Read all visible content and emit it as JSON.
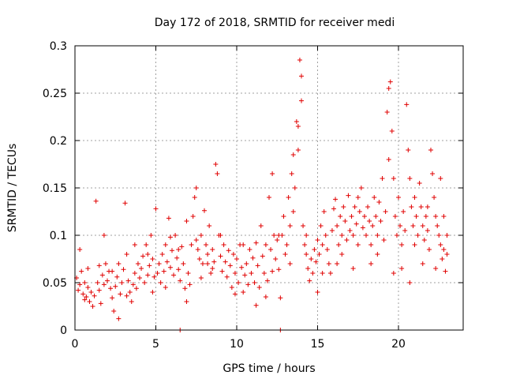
{
  "chart_data": {
    "type": "scatter",
    "title": "Day 172 of 2018, SRMTID for receiver medi",
    "xlabel": "GPS time / hours",
    "ylabel": "SRMTID / TECUs",
    "xlim": [
      0,
      24
    ],
    "ylim": [
      0,
      0.3
    ],
    "xticks": [
      0,
      5,
      10,
      15,
      20
    ],
    "xtick_labels": [
      "0",
      "5",
      "10",
      "15",
      "20"
    ],
    "yticks": [
      0,
      0.05,
      0.1,
      0.15,
      0.2,
      0.25,
      0.3
    ],
    "ytick_labels": [
      "0",
      "0.05",
      "0.1",
      "0.15",
      "0.2",
      "0.25",
      "0.3"
    ],
    "grid": true,
    "marker": "+",
    "marker_color": "#e00000",
    "series": [
      {
        "name": "SRMTID",
        "points": [
          [
            0.1,
            0.055
          ],
          [
            0.2,
            0.042
          ],
          [
            0.3,
            0.048
          ],
          [
            0.4,
            0.062
          ],
          [
            0.5,
            0.038
          ],
          [
            0.6,
            0.05
          ],
          [
            0.7,
            0.035
          ],
          [
            0.8,
            0.045
          ],
          [
            0.9,
            0.03
          ],
          [
            1.0,
            0.04
          ],
          [
            1.1,
            0.025
          ],
          [
            1.2,
            0.036
          ],
          [
            1.3,
            0.136
          ],
          [
            1.4,
            0.05
          ],
          [
            1.5,
            0.042
          ],
          [
            1.6,
            0.028
          ],
          [
            1.7,
            0.058
          ],
          [
            1.8,
            0.048
          ],
          [
            1.9,
            0.07
          ],
          [
            2.0,
            0.052
          ],
          [
            2.1,
            0.062
          ],
          [
            2.2,
            0.044
          ],
          [
            2.3,
            0.034
          ],
          [
            2.4,
            0.02
          ],
          [
            2.5,
            0.046
          ],
          [
            2.6,
            0.056
          ],
          [
            2.7,
            0.07
          ],
          [
            2.8,
            0.038
          ],
          [
            2.9,
            0.05
          ],
          [
            3.0,
            0.064
          ],
          [
            3.1,
            0.134
          ],
          [
            3.2,
            0.08
          ],
          [
            3.3,
            0.052
          ],
          [
            3.4,
            0.04
          ],
          [
            3.5,
            0.03
          ],
          [
            3.6,
            0.048
          ],
          [
            3.7,
            0.06
          ],
          [
            3.8,
            0.044
          ],
          [
            3.9,
            0.07
          ],
          [
            4.0,
            0.055
          ],
          [
            4.1,
            0.065
          ],
          [
            4.2,
            0.078
          ],
          [
            4.3,
            0.05
          ],
          [
            4.4,
            0.09
          ],
          [
            4.5,
            0.058
          ],
          [
            4.6,
            0.068
          ],
          [
            4.7,
            0.1
          ],
          [
            4.8,
            0.075
          ],
          [
            4.9,
            0.056
          ],
          [
            5.0,
            0.128
          ],
          [
            5.1,
            0.06
          ],
          [
            5.2,
            0.07
          ],
          [
            5.3,
            0.05
          ],
          [
            5.4,
            0.08
          ],
          [
            5.5,
            0.062
          ],
          [
            5.6,
            0.09
          ],
          [
            5.7,
            0.072
          ],
          [
            5.8,
            0.118
          ],
          [
            5.9,
            0.066
          ],
          [
            6.0,
            0.084
          ],
          [
            6.1,
            0.058
          ],
          [
            6.2,
            0.1
          ],
          [
            6.3,
            0.076
          ],
          [
            6.4,
            0.064
          ],
          [
            6.5,
            0.052
          ],
          [
            6.6,
            0.088
          ],
          [
            6.7,
            0.07
          ],
          [
            6.8,
            0.044
          ],
          [
            6.9,
            0.03
          ],
          [
            7.0,
            0.06
          ],
          [
            7.1,
            0.048
          ],
          [
            7.2,
            0.09
          ],
          [
            7.3,
            0.12
          ],
          [
            7.4,
            0.14
          ],
          [
            7.5,
            0.095
          ],
          [
            7.6,
            0.085
          ],
          [
            7.7,
            0.075
          ],
          [
            7.8,
            0.1
          ],
          [
            7.9,
            0.07
          ],
          [
            8.0,
            0.126
          ],
          [
            8.1,
            0.09
          ],
          [
            8.2,
            0.08
          ],
          [
            8.3,
            0.11
          ],
          [
            8.4,
            0.06
          ],
          [
            8.5,
            0.085
          ],
          [
            8.6,
            0.072
          ],
          [
            8.7,
            0.175
          ],
          [
            8.8,
            0.165
          ],
          [
            8.9,
            0.1
          ],
          [
            9.0,
            0.078
          ],
          [
            9.1,
            0.062
          ],
          [
            9.2,
            0.09
          ],
          [
            9.3,
            0.072
          ],
          [
            9.4,
            0.056
          ],
          [
            9.5,
            0.084
          ],
          [
            9.6,
            0.068
          ],
          [
            9.7,
            0.045
          ],
          [
            9.8,
            0.08
          ],
          [
            9.9,
            0.06
          ],
          [
            10.0,
            0.075
          ],
          [
            10.1,
            0.05
          ],
          [
            10.2,
            0.09
          ],
          [
            10.3,
            0.066
          ],
          [
            10.4,
            0.04
          ],
          [
            10.5,
            0.058
          ],
          [
            10.6,
            0.07
          ],
          [
            10.7,
            0.048
          ],
          [
            10.8,
            0.085
          ],
          [
            10.9,
            0.06
          ],
          [
            11.0,
            0.076
          ],
          [
            11.1,
            0.05
          ],
          [
            11.2,
            0.092
          ],
          [
            11.3,
            0.068
          ],
          [
            11.4,
            0.045
          ],
          [
            11.5,
            0.11
          ],
          [
            11.6,
            0.078
          ],
          [
            11.7,
            0.06
          ],
          [
            11.8,
            0.09
          ],
          [
            11.9,
            0.052
          ],
          [
            12.0,
            0.14
          ],
          [
            12.1,
            0.085
          ],
          [
            12.2,
            0.165
          ],
          [
            12.3,
            0.1
          ],
          [
            12.4,
            0.075
          ],
          [
            12.5,
            0.095
          ],
          [
            12.6,
            0.064
          ],
          [
            12.7,
            0.034
          ],
          [
            12.8,
            0.1
          ],
          [
            12.9,
            0.12
          ],
          [
            13.0,
            0.08
          ],
          [
            13.1,
            0.09
          ],
          [
            13.2,
            0.14
          ],
          [
            13.3,
            0.11
          ],
          [
            13.4,
            0.165
          ],
          [
            13.5,
            0.185
          ],
          [
            13.6,
            0.15
          ],
          [
            13.7,
            0.22
          ],
          [
            13.8,
            0.215
          ],
          [
            13.9,
            0.285
          ],
          [
            14.0,
            0.242
          ],
          [
            14.1,
            0.11
          ],
          [
            14.2,
            0.09
          ],
          [
            14.3,
            0.08
          ],
          [
            14.4,
            0.065
          ],
          [
            14.5,
            0.052
          ],
          [
            14.6,
            0.075
          ],
          [
            14.7,
            0.06
          ],
          [
            14.8,
            0.085
          ],
          [
            14.9,
            0.072
          ],
          [
            15.0,
            0.095
          ],
          [
            15.1,
            0.08
          ],
          [
            15.2,
            0.11
          ],
          [
            15.3,
            0.09
          ],
          [
            15.4,
            0.125
          ],
          [
            15.5,
            0.1
          ],
          [
            15.6,
            0.085
          ],
          [
            15.7,
            0.07
          ],
          [
            15.8,
            0.06
          ],
          [
            15.9,
            0.105
          ],
          [
            16.0,
            0.128
          ],
          [
            16.1,
            0.138
          ],
          [
            16.2,
            0.11
          ],
          [
            16.3,
            0.09
          ],
          [
            16.4,
            0.12
          ],
          [
            16.5,
            0.1
          ],
          [
            16.6,
            0.13
          ],
          [
            16.7,
            0.115
          ],
          [
            16.8,
            0.095
          ],
          [
            16.9,
            0.142
          ],
          [
            17.0,
            0.105
          ],
          [
            17.1,
            0.12
          ],
          [
            17.2,
            0.1
          ],
          [
            17.3,
            0.13
          ],
          [
            17.4,
            0.112
          ],
          [
            17.5,
            0.09
          ],
          [
            17.6,
            0.125
          ],
          [
            17.7,
            0.15
          ],
          [
            17.8,
            0.108
          ],
          [
            17.9,
            0.12
          ],
          [
            18.0,
            0.1
          ],
          [
            18.1,
            0.13
          ],
          [
            18.2,
            0.115
          ],
          [
            18.3,
            0.09
          ],
          [
            18.4,
            0.11
          ],
          [
            18.5,
            0.14
          ],
          [
            18.6,
            0.12
          ],
          [
            18.7,
            0.1
          ],
          [
            18.8,
            0.135
          ],
          [
            18.9,
            0.115
          ],
          [
            19.0,
            0.16
          ],
          [
            19.1,
            0.095
          ],
          [
            19.2,
            0.125
          ],
          [
            19.3,
            0.23
          ],
          [
            19.4,
            0.255
          ],
          [
            19.5,
            0.262
          ],
          [
            19.6,
            0.21
          ],
          [
            19.7,
            0.16
          ],
          [
            19.8,
            0.12
          ],
          [
            19.9,
            0.1
          ],
          [
            20.0,
            0.14
          ],
          [
            20.1,
            0.11
          ],
          [
            20.2,
            0.09
          ],
          [
            20.3,
            0.125
          ],
          [
            20.4,
            0.105
          ],
          [
            20.5,
            0.238
          ],
          [
            20.6,
            0.19
          ],
          [
            20.7,
            0.16
          ],
          [
            20.8,
            0.13
          ],
          [
            20.9,
            0.11
          ],
          [
            21.0,
            0.14
          ],
          [
            21.1,
            0.12
          ],
          [
            21.2,
            0.1
          ],
          [
            21.3,
            0.155
          ],
          [
            21.4,
            0.13
          ],
          [
            21.5,
            0.11
          ],
          [
            21.6,
            0.095
          ],
          [
            21.7,
            0.12
          ],
          [
            21.8,
            0.105
          ],
          [
            21.9,
            0.085
          ],
          [
            22.0,
            0.19
          ],
          [
            22.1,
            0.165
          ],
          [
            22.2,
            0.14
          ],
          [
            22.3,
            0.12
          ],
          [
            22.4,
            0.11
          ],
          [
            22.5,
            0.1
          ],
          [
            22.6,
            0.09
          ],
          [
            22.7,
            0.075
          ],
          [
            22.8,
            0.085
          ],
          [
            22.9,
            0.062
          ],
          [
            23.0,
            0.08
          ],
          [
            0.3,
            0.085
          ],
          [
            0.6,
            0.032
          ],
          [
            1.5,
            0.068
          ],
          [
            2.3,
            0.062
          ],
          [
            3.2,
            0.036
          ],
          [
            4.5,
            0.08
          ],
          [
            5.6,
            0.045
          ],
          [
            6.4,
            0.085
          ],
          [
            7.5,
            0.15
          ],
          [
            8.2,
            0.07
          ],
          [
            9.0,
            0.1
          ],
          [
            9.9,
            0.038
          ],
          [
            11.2,
            0.026
          ],
          [
            11.8,
            0.035
          ],
          [
            12.6,
            0.1
          ],
          [
            13.3,
            0.07
          ],
          [
            13.8,
            0.19
          ],
          [
            14.0,
            0.268
          ],
          [
            15.3,
            0.06
          ],
          [
            16.5,
            0.08
          ],
          [
            17.5,
            0.14
          ],
          [
            18.3,
            0.07
          ],
          [
            19.4,
            0.18
          ],
          [
            20.2,
            0.065
          ],
          [
            21.0,
            0.09
          ],
          [
            21.8,
            0.13
          ],
          [
            22.6,
            0.16
          ],
          [
            23.0,
            0.1
          ],
          [
            0.8,
            0.065
          ],
          [
            1.8,
            0.1
          ],
          [
            2.7,
            0.012
          ],
          [
            3.7,
            0.09
          ],
          [
            4.8,
            0.04
          ],
          [
            5.9,
            0.098
          ],
          [
            6.9,
            0.115
          ],
          [
            7.8,
            0.055
          ],
          [
            8.5,
            0.065
          ],
          [
            10.4,
            0.09
          ],
          [
            12.2,
            0.062
          ],
          [
            13.5,
            0.125
          ],
          [
            14.3,
            0.1
          ],
          [
            15.0,
            0.04
          ],
          [
            16.2,
            0.07
          ],
          [
            17.2,
            0.065
          ],
          [
            18.7,
            0.08
          ],
          [
            19.7,
            0.06
          ],
          [
            20.7,
            0.05
          ],
          [
            21.5,
            0.07
          ],
          [
            22.3,
            0.065
          ],
          [
            22.8,
            0.12
          ],
          [
            6.5,
            0.0
          ],
          [
            12.7,
            0.0
          ]
        ]
      }
    ]
  }
}
